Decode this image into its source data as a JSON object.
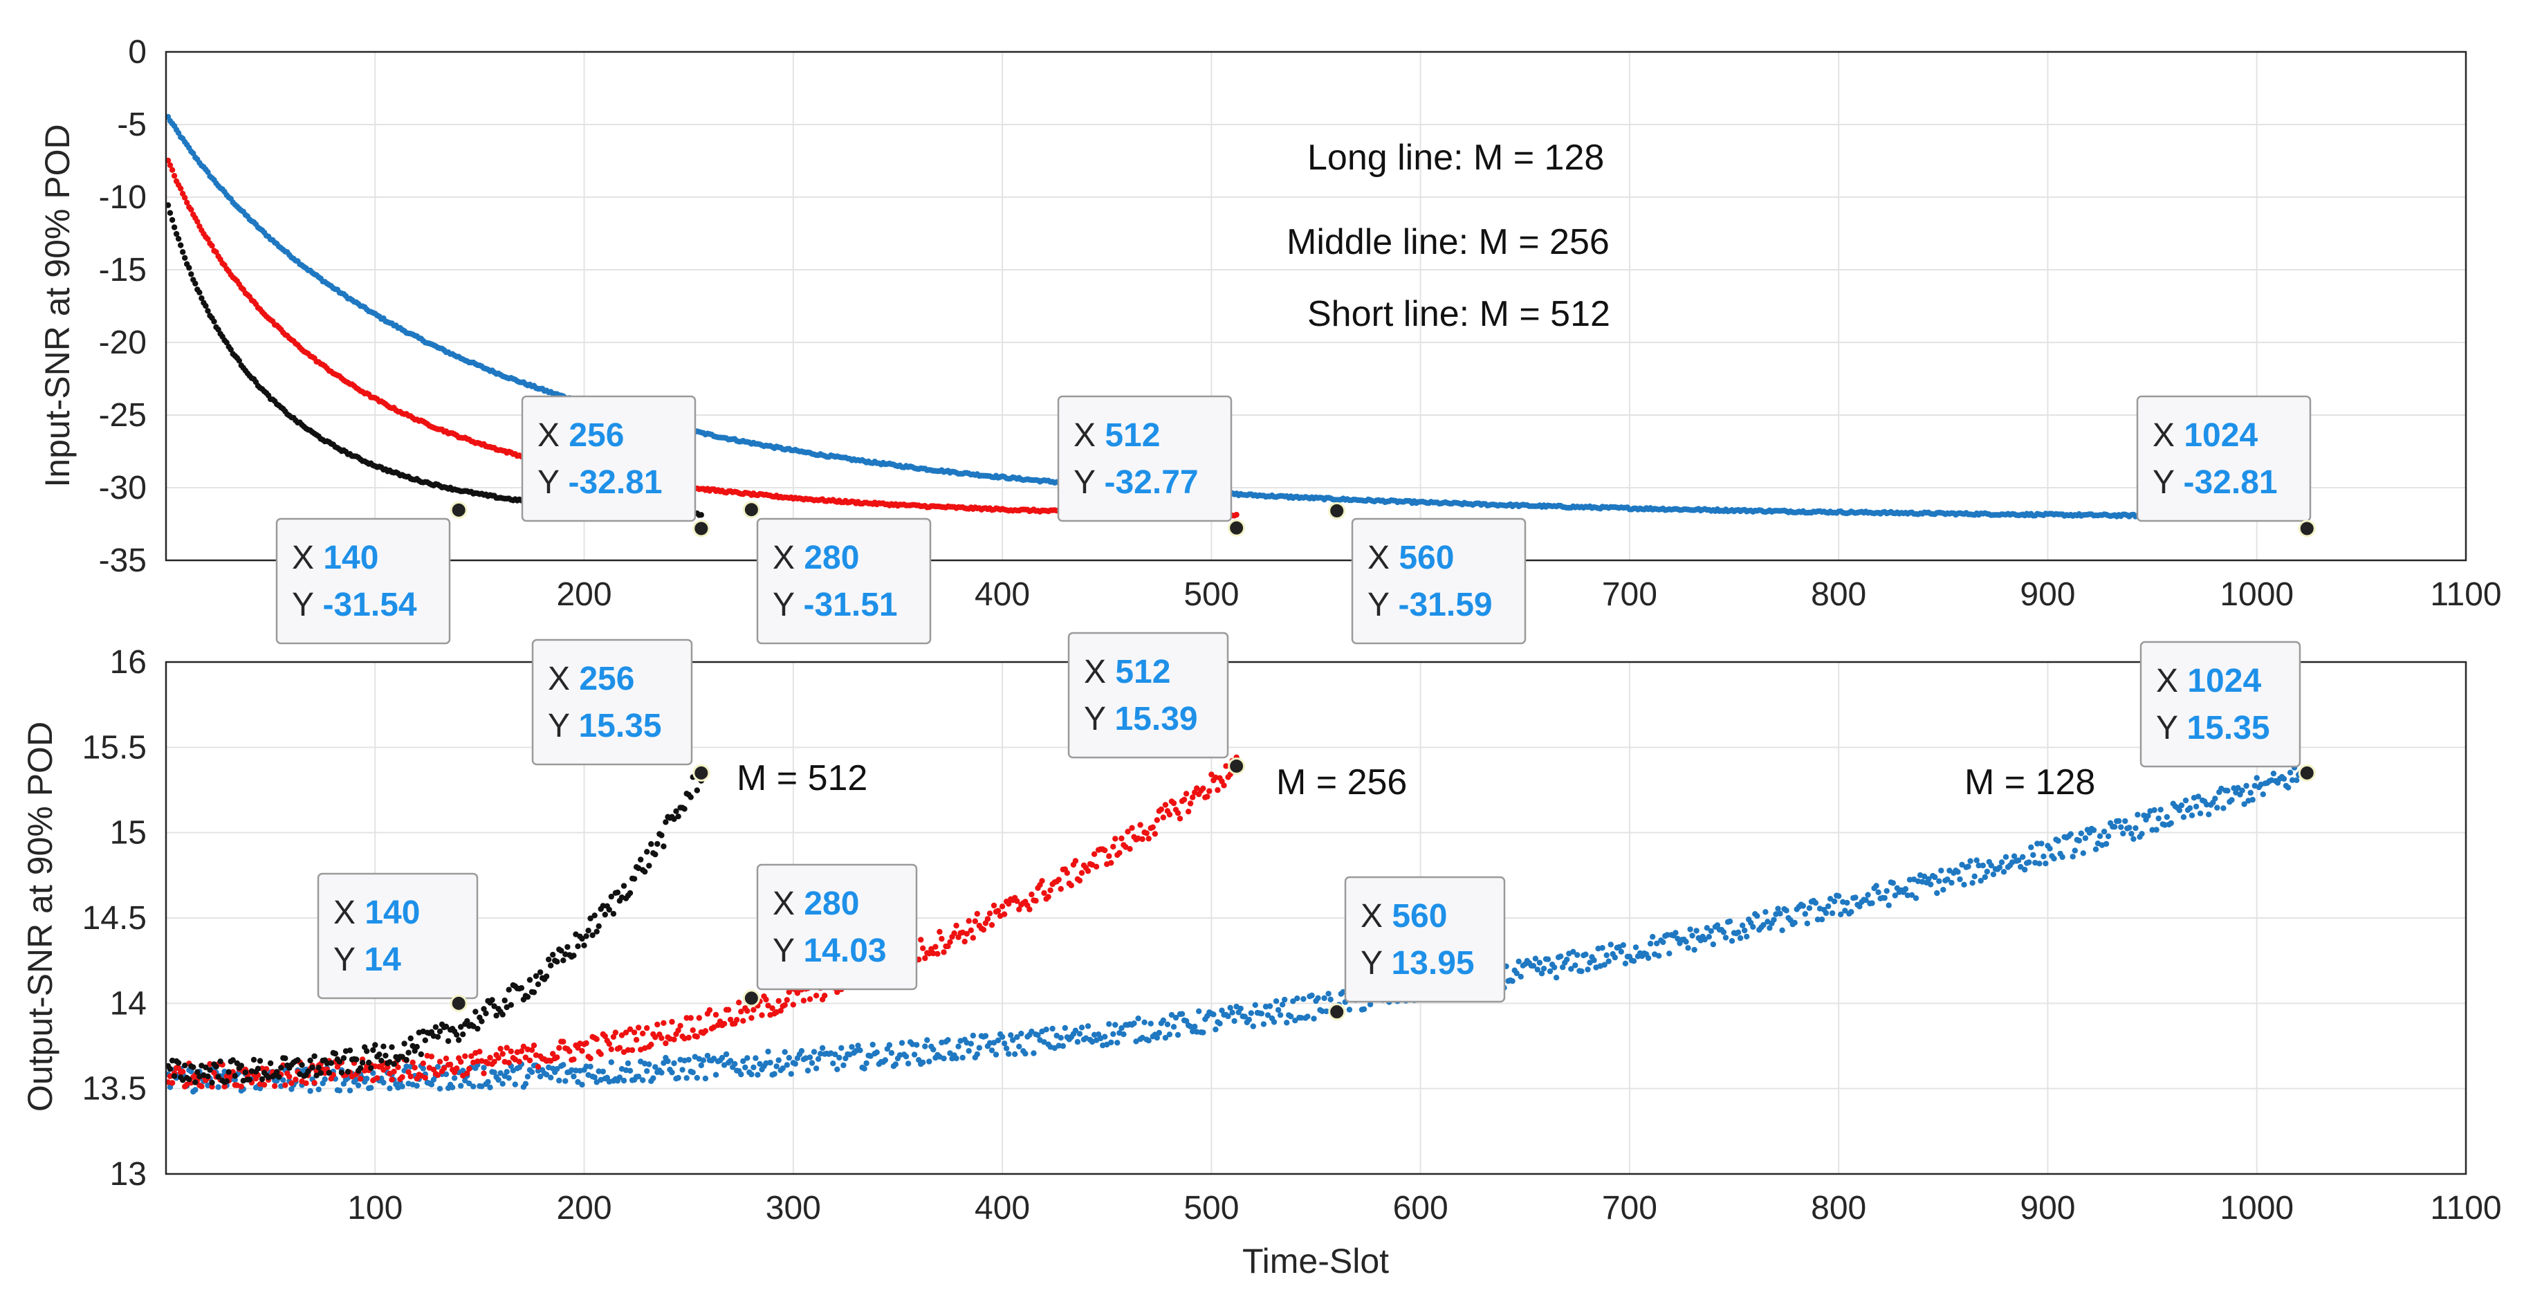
{
  "colors": {
    "blue": "#1f78c1",
    "red": "#ee1111",
    "black": "#111111",
    "tip_value": "#1e90e8"
  },
  "chart_data": [
    {
      "id": "top",
      "type": "scatter",
      "title": "",
      "xlabel": "",
      "ylabel": "Input-SNR at 90% POD",
      "xlim": [
        0,
        1100
      ],
      "ylim": [
        -35,
        0
      ],
      "xticks": [
        200,
        300,
        400,
        500,
        600,
        700,
        800,
        900,
        1000,
        1100
      ],
      "yticks": [
        0,
        -5,
        -10,
        -15,
        -20,
        -25,
        -30,
        -35
      ],
      "grid": true,
      "annotations": [
        "Long line:  M = 128",
        "Middle line: M = 256",
        "Short line:  M = 512"
      ],
      "series": [
        {
          "name": "M = 128",
          "color": "#1f78c1",
          "x_end": 1024,
          "start": -4.5,
          "end": -32.81,
          "tau": 95
        },
        {
          "name": "M = 256",
          "color": "#ee1111",
          "x_end": 512,
          "start": -7.5,
          "end": -32.77,
          "tau": 55
        },
        {
          "name": "M = 512",
          "color": "#111111",
          "x_end": 256,
          "start": -10.5,
          "end": -32.81,
          "tau": 32
        }
      ],
      "datatips": [
        {
          "x": 140,
          "y": -31.54,
          "x_label": "140",
          "y_label": "-31.54"
        },
        {
          "x": 256,
          "y": -32.81,
          "x_label": "256",
          "y_label": "-32.81"
        },
        {
          "x": 280,
          "y": -31.51,
          "x_label": "280",
          "y_label": "-31.51"
        },
        {
          "x": 512,
          "y": -32.77,
          "x_label": "512",
          "y_label": "-32.77"
        },
        {
          "x": 560,
          "y": -31.59,
          "x_label": "560",
          "y_label": "-31.59"
        },
        {
          "x": 1024,
          "y": -32.81,
          "x_label": "1024",
          "y_label": "-32.81"
        }
      ]
    },
    {
      "id": "bottom",
      "type": "scatter",
      "title": "",
      "xlabel": "Time-Slot",
      "ylabel": "Output-SNR at 90% POD",
      "xlim": [
        0,
        1100
      ],
      "ylim": [
        13,
        16
      ],
      "xticks": [
        100,
        200,
        300,
        400,
        500,
        600,
        700,
        800,
        900,
        1000,
        1100
      ],
      "yticks": [
        13,
        13.5,
        14,
        14.5,
        15,
        15.5,
        16
      ],
      "grid": true,
      "annotations": [
        "M = 512",
        "M = 256",
        "M = 128"
      ],
      "series": [
        {
          "name": "M = 128",
          "color": "#1f78c1",
          "x_end": 1024,
          "base": 13.55,
          "end": 15.35,
          "pow": 2.3
        },
        {
          "name": "M = 256",
          "color": "#ee1111",
          "x_end": 512,
          "base": 13.58,
          "end": 15.39,
          "pow": 2.6
        },
        {
          "name": "M = 512",
          "color": "#111111",
          "x_end": 256,
          "base": 13.6,
          "end": 15.35,
          "pow": 3.2
        }
      ],
      "datatips": [
        {
          "x": 140,
          "y": 14,
          "x_label": "140",
          "y_label": "14"
        },
        {
          "x": 256,
          "y": 15.35,
          "x_label": "256",
          "y_label": "15.35"
        },
        {
          "x": 280,
          "y": 14.03,
          "x_label": "280",
          "y_label": "14.03"
        },
        {
          "x": 512,
          "y": 15.39,
          "x_label": "512",
          "y_label": "15.39"
        },
        {
          "x": 560,
          "y": 13.95,
          "x_label": "560",
          "y_label": "13.95"
        },
        {
          "x": 1024,
          "y": 15.35,
          "x_label": "1024",
          "y_label": "15.35"
        }
      ]
    }
  ]
}
